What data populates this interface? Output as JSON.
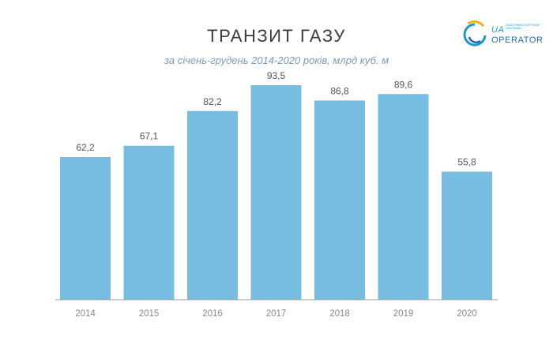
{
  "header": {
    "title": "ТРАНЗИТ ГАЗУ",
    "subtitle": "за січень-грудень 2014-2020 років, млрд куб. м"
  },
  "logo": {
    "ua": "UA",
    "small": "ГАЗОТРАНСПОРТНИЙ СИСТЕМИ",
    "operator": "OPERATOR"
  },
  "colors": {
    "bar": "#77bde1",
    "axis": "#9a9a9a"
  },
  "chart_data": {
    "type": "bar",
    "categories": [
      "2014",
      "2015",
      "2016",
      "2017",
      "2018",
      "2019",
      "2020"
    ],
    "values": [
      62.2,
      67.1,
      82.2,
      93.5,
      86.8,
      89.6,
      55.8
    ],
    "value_labels": [
      "62,2",
      "67,1",
      "82,2",
      "93,5",
      "86,8",
      "89,6",
      "55,8"
    ],
    "title": "ТРАНЗИТ ГАЗУ",
    "subtitle": "за січень-грудень 2014-2020 років, млрд куб. м",
    "xlabel": "",
    "ylabel": "",
    "ylim": [
      0,
      100
    ],
    "grid": false,
    "legend": "none"
  }
}
